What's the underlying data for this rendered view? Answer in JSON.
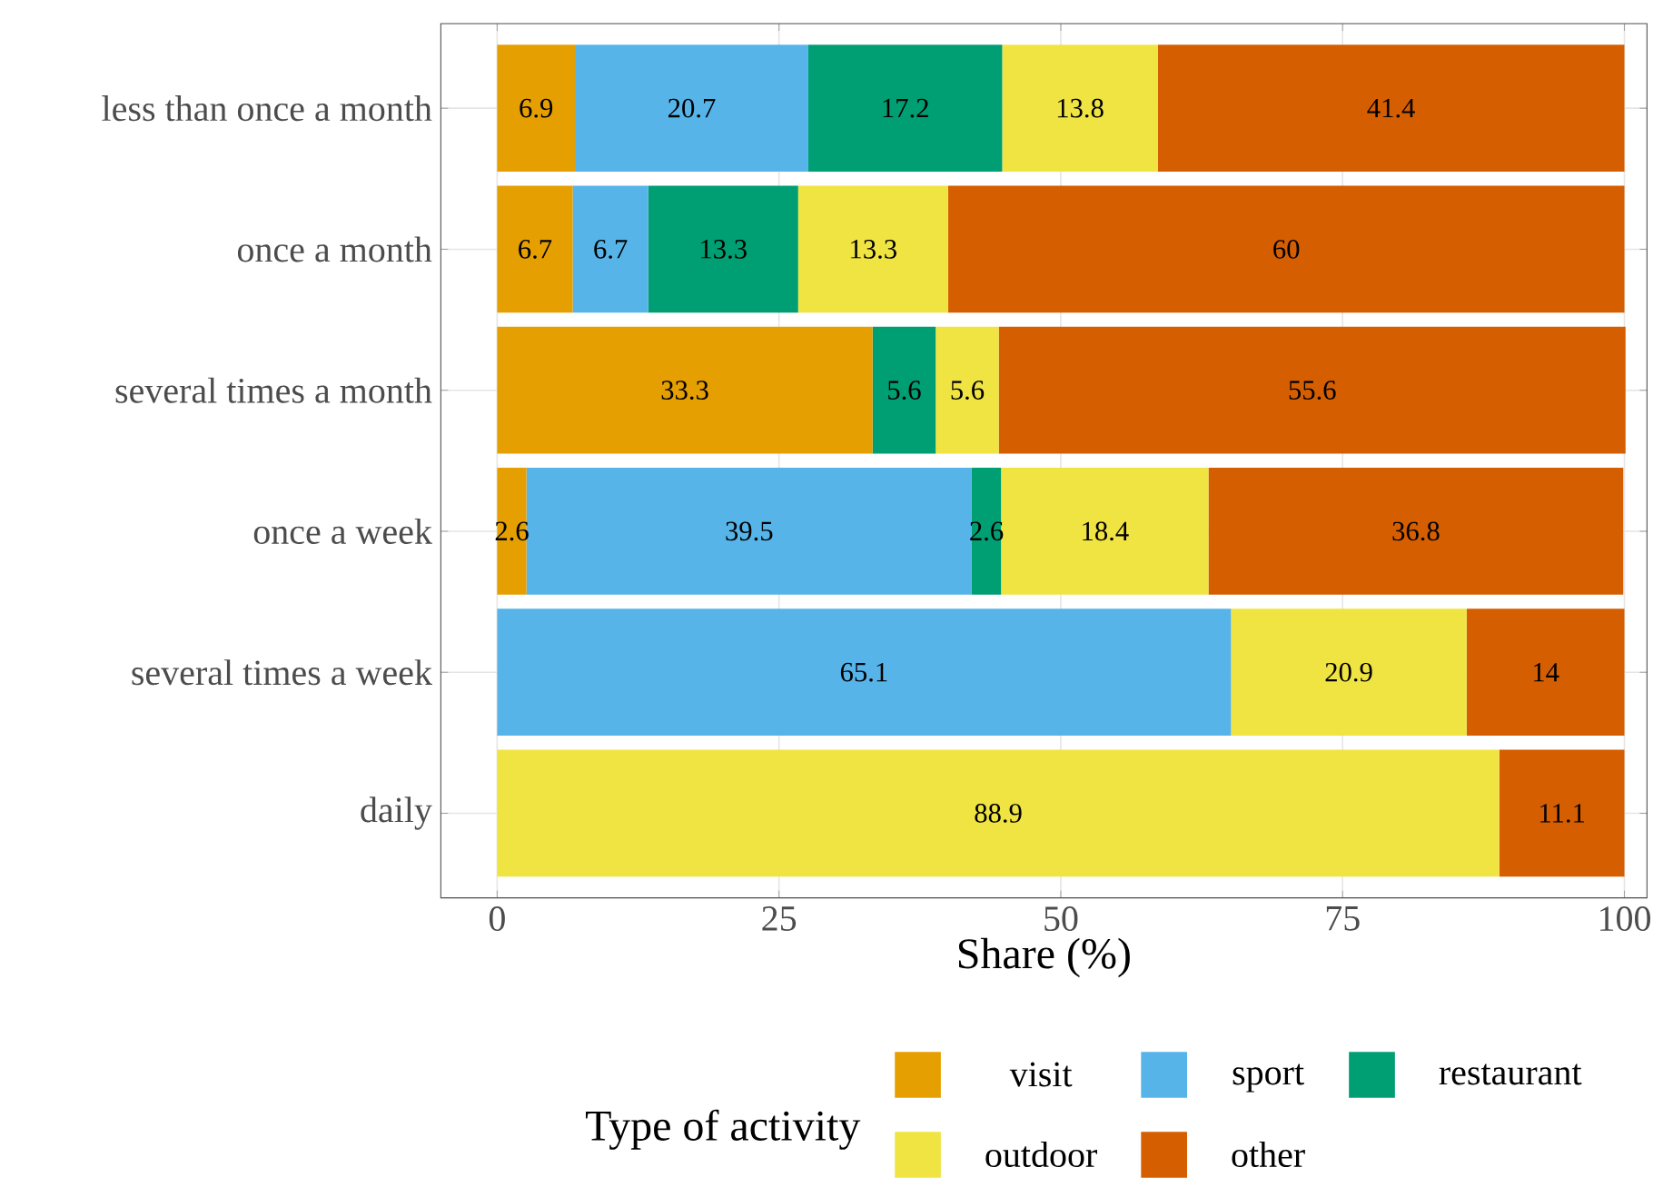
{
  "chart_data": {
    "type": "bar",
    "orientation": "horizontal",
    "stacked": true,
    "xlabel": "Share (%)",
    "legend_title": "Type of activity",
    "legend": "bottom",
    "grid": true,
    "categories": [
      "less than once a month",
      "once a month",
      "several times a month",
      "once a week",
      "several times a week",
      "daily"
    ],
    "xlim": [
      -5,
      102
    ],
    "xticks": [
      0,
      25,
      50,
      75,
      100
    ],
    "series": [
      {
        "name": "visit",
        "color": "#E69F00",
        "values": [
          6.9,
          6.7,
          33.3,
          2.6,
          0,
          0
        ],
        "value_labels": [
          "6.9",
          "6.7",
          "33.3",
          "2.6",
          null,
          null
        ]
      },
      {
        "name": "sport",
        "color": "#56B4E9",
        "values": [
          20.7,
          6.7,
          0,
          39.5,
          65.1,
          0
        ],
        "value_labels": [
          "20.7",
          "6.7",
          null,
          "39.5",
          "65.1",
          null
        ]
      },
      {
        "name": "restaurant",
        "color": "#009E73",
        "values": [
          17.2,
          13.3,
          5.6,
          2.6,
          0,
          0
        ],
        "value_labels": [
          "17.2",
          "13.3",
          "5.6",
          "2.6",
          null,
          null
        ]
      },
      {
        "name": "outdoor",
        "color": "#F0E442",
        "values": [
          13.8,
          13.3,
          5.6,
          18.4,
          20.9,
          88.9
        ],
        "value_labels": [
          "13.8",
          "13.3",
          "5.6",
          "18.4",
          "20.9",
          "88.9"
        ]
      },
      {
        "name": "other",
        "color": "#D55E00",
        "values": [
          41.4,
          60,
          55.6,
          36.8,
          14,
          11.1
        ],
        "value_labels": [
          "41.4",
          "60",
          "55.6",
          "36.8",
          "14",
          "11.1"
        ]
      }
    ]
  }
}
